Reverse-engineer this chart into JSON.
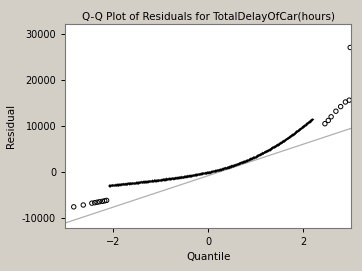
{
  "title": "Q-Q Plot of Residuals for TotalDelayOfCar(hours)",
  "xlabel": "Quantile",
  "ylabel": "Residual",
  "xlim": [
    -3.0,
    3.0
  ],
  "ylim": [
    -12000,
    32000
  ],
  "yticks": [
    -10000,
    0,
    10000,
    20000,
    30000
  ],
  "xticks": [
    -2,
    0,
    2
  ],
  "background_color": "#d3cfc7",
  "plot_bg_color": "#ffffff",
  "line_color": "#b0b0b0",
  "marker_color": "#000000",
  "title_fontsize": 7.5,
  "label_fontsize": 7.5,
  "tick_fontsize": 7,
  "reference_line_x": [
    -3.0,
    3.0
  ],
  "reference_line_y": [
    -11000,
    9500
  ],
  "outlier_x": [
    2.45,
    2.52,
    2.58,
    2.68,
    2.78,
    2.88,
    2.96
  ],
  "outlier_y": [
    10500,
    11200,
    12000,
    13200,
    14200,
    15200,
    15600
  ],
  "far_outlier_x": [
    2.98
  ],
  "far_outlier_y": [
    27000
  ],
  "low_outlier_x": [
    -2.82,
    -2.62,
    -2.44,
    -2.38,
    -2.33,
    -2.28,
    -2.22,
    -2.17,
    -2.13
  ],
  "low_outlier_y": [
    -7500,
    -7100,
    -6700,
    -6600,
    -6500,
    -6400,
    -6300,
    -6200,
    -6100
  ]
}
